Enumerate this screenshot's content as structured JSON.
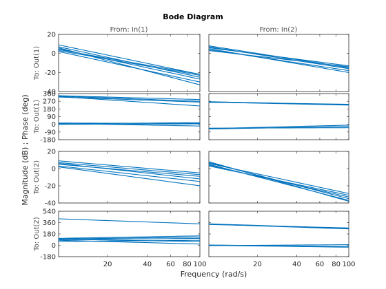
{
  "chart_data": {
    "type": "line",
    "title": "Bode Diagram",
    "xlabel": "Frequency  (rad/s)",
    "ylabel": "Magnitude (dB) ; Phase (deg)",
    "x_scale": "log",
    "xlim": [
      8.5,
      100
    ],
    "x_ticks": [
      20,
      40,
      60,
      80,
      100
    ],
    "x_tick_labels": [
      "20",
      "40",
      "60",
      "80",
      "100"
    ],
    "series_color": "#0072bd",
    "columns": [
      {
        "label": "From: In(1)"
      },
      {
        "label": "From: In(2)"
      }
    ],
    "rows": [
      {
        "kind": "magnitude",
        "label": "To: Out(1)",
        "ylim": [
          -40,
          20
        ],
        "y_ticks": [
          -40,
          -20,
          0,
          20
        ],
        "y_tick_labels": [
          "-40",
          "-20",
          "0",
          "20"
        ],
        "cells": [
          {
            "curves": [
              [
                8.5,
                9,
                100,
                -22
              ],
              [
                8.5,
                7,
                100,
                -25
              ],
              [
                8.5,
                5,
                100,
                -27
              ],
              [
                8.5,
                3,
                100,
                -23
              ],
              [
                8.5,
                2,
                100,
                -30
              ],
              [
                8.5,
                6,
                100,
                -33
              ],
              [
                8.5,
                4,
                100,
                -22
              ]
            ]
          },
          {
            "curves": [
              [
                8.5,
                8,
                100,
                -15
              ],
              [
                8.5,
                6,
                100,
                -13
              ],
              [
                8.5,
                4,
                100,
                -18
              ],
              [
                8.5,
                7,
                100,
                -16
              ],
              [
                8.5,
                5,
                100,
                -20
              ],
              [
                8.5,
                3,
                100,
                -14
              ]
            ]
          }
        ]
      },
      {
        "kind": "phase",
        "label": "To: Out(1)",
        "ylim": [
          -180,
          360
        ],
        "y_ticks": [
          -180,
          -90,
          0,
          90,
          180,
          270,
          360
        ],
        "y_tick_labels": [
          "-180",
          "-90",
          "0",
          "90",
          "180",
          "270",
          "360"
        ],
        "cells": [
          {
            "curves": [
              [
                8.5,
                330,
                100,
                270
              ],
              [
                8.5,
                320,
                100,
                260
              ],
              [
                8.5,
                325,
                100,
                215
              ],
              [
                8.5,
                335,
                100,
                290
              ],
              [
                8.5,
                15,
                100,
                10
              ],
              [
                8.5,
                5,
                100,
                20
              ],
              [
                8.5,
                10,
                100,
                -20
              ],
              [
                8.5,
                0,
                100,
                5
              ]
            ]
          },
          {
            "curves": [
              [
                8.5,
                265,
                100,
                230
              ],
              [
                8.5,
                260,
                100,
                225
              ],
              [
                8.5,
                258,
                100,
                235
              ],
              [
                8.5,
                -50,
                100,
                -10
              ],
              [
                8.5,
                -55,
                100,
                -25
              ],
              [
                8.5,
                -45,
                100,
                -40
              ]
            ]
          }
        ]
      },
      {
        "kind": "magnitude",
        "label": "To: Out(2)",
        "ylim": [
          -40,
          20
        ],
        "y_ticks": [
          -40,
          -20,
          0,
          20
        ],
        "y_tick_labels": [
          "-40",
          "-20",
          "0",
          "20"
        ],
        "cells": [
          {
            "curves": [
              [
                8.5,
                7,
                100,
                -7
              ],
              [
                8.5,
                5,
                100,
                -9
              ],
              [
                8.5,
                3,
                100,
                -15
              ],
              [
                8.5,
                9,
                100,
                -5
              ],
              [
                8.5,
                2,
                100,
                -20
              ],
              [
                8.5,
                6,
                100,
                -12
              ]
            ]
          },
          {
            "curves": [
              [
                8.5,
                7,
                100,
                -35
              ],
              [
                8.5,
                5,
                100,
                -37
              ],
              [
                8.5,
                3,
                100,
                -31
              ],
              [
                8.5,
                8,
                100,
                -38
              ],
              [
                8.5,
                4,
                100,
                -33
              ],
              [
                8.5,
                6,
                100,
                -29
              ]
            ]
          }
        ]
      },
      {
        "kind": "phase",
        "label": "To: Out(2)",
        "ylim": [
          -180,
          540
        ],
        "y_ticks": [
          -180,
          0,
          180,
          360,
          540
        ],
        "y_tick_labels": [
          "-180",
          "0",
          "180",
          "360",
          "540"
        ],
        "cells": [
          {
            "curves": [
              [
                8.5,
                420,
                100,
                340
              ],
              [
                8.5,
                110,
                100,
                150
              ],
              [
                8.5,
                100,
                100,
                130
              ],
              [
                8.5,
                95,
                100,
                60
              ],
              [
                8.5,
                80,
                100,
                20
              ],
              [
                8.5,
                60,
                100,
                80
              ],
              [
                8.5,
                90,
                100,
                110
              ]
            ]
          },
          {
            "curves": [
              [
                8.5,
                340,
                100,
                270
              ],
              [
                8.5,
                335,
                100,
                260
              ],
              [
                8.5,
                330,
                100,
                275
              ],
              [
                8.5,
                5,
                100,
                -20
              ],
              [
                8.5,
                0,
                100,
                -30
              ],
              [
                8.5,
                -5,
                100,
                10
              ]
            ]
          }
        ]
      }
    ]
  }
}
